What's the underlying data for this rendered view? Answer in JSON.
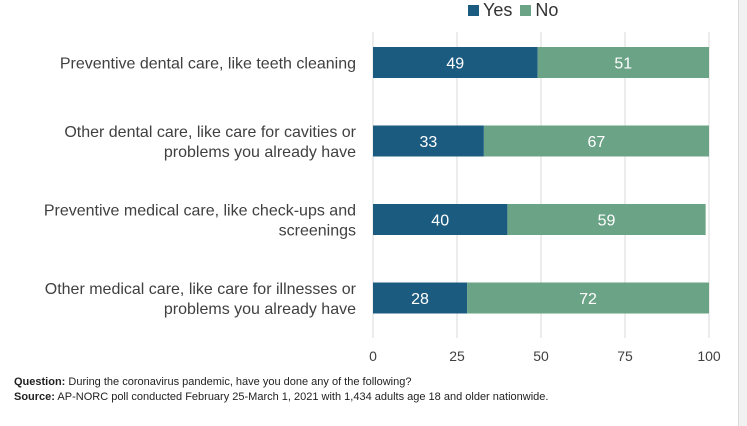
{
  "legend": {
    "yes": "Yes",
    "no": "No"
  },
  "colors": {
    "yes": "#1c5b80",
    "no": "#6ba386",
    "grid": "#d9d9d9"
  },
  "chart_data": {
    "type": "bar",
    "orientation": "horizontal",
    "stacked": true,
    "categories": [
      "Preventive dental care, like teeth cleaning",
      "Other dental care, like care for cavities or problems you already have",
      "Preventive medical care, like check-ups and screenings",
      "Other medical care, like care for illnesses or problems you already have"
    ],
    "category_lines": [
      [
        "Preventive dental care, like teeth cleaning"
      ],
      [
        "Other dental care, like care for cavities or",
        "problems you already have"
      ],
      [
        "Preventive medical care, like check-ups and",
        "screenings"
      ],
      [
        "Other medical care, like care for illnesses or",
        "problems you already have"
      ]
    ],
    "series": [
      {
        "name": "Yes",
        "values": [
          49,
          33,
          40,
          28
        ]
      },
      {
        "name": "No",
        "values": [
          51,
          67,
          59,
          72
        ]
      }
    ],
    "xlim": [
      0,
      100
    ],
    "xticks": [
      0,
      25,
      50,
      75,
      100
    ],
    "grid": true,
    "legend_position": "top-right"
  },
  "footer": {
    "question_label": "Question:",
    "question_text": " During the coronavirus pandemic, have you done any of the following?",
    "source_label": "Source:",
    "source_text": " AP-NORC poll conducted February 25-March 1, 2021 with 1,434 adults age 18 and older nationwide."
  }
}
